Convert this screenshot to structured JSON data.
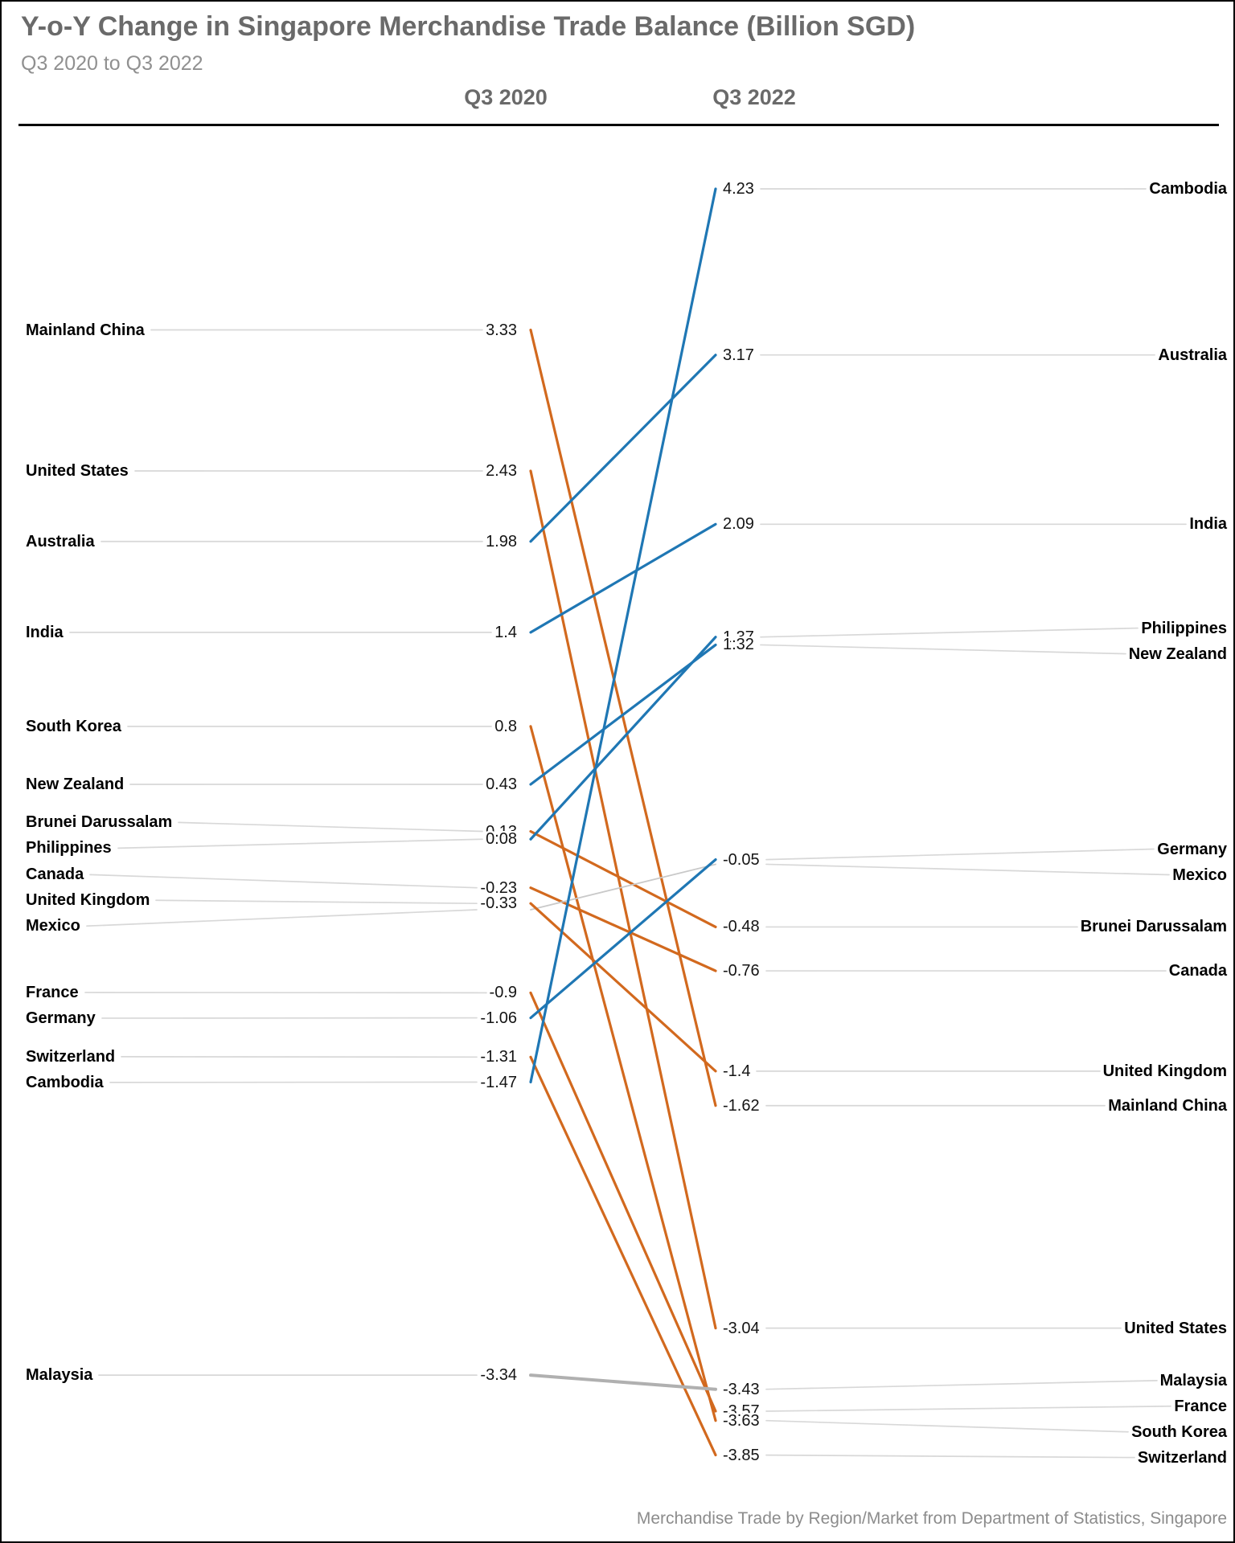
{
  "title": "Y-o-Y Change in Singapore Merchandise Trade Balance (Billion SGD)",
  "subtitle": "Q3 2020 to Q3 2022",
  "column_headers": {
    "left": "Q3 2020",
    "right": "Q3 2022"
  },
  "source": "Merchandise Trade by Region/Market from Department of Statistics, Singapore",
  "colors": {
    "up": "#1f77b4",
    "down": "#d2691e",
    "flat": "#c9c9c9",
    "flat_thick": "#b0b0b0",
    "connector": "#d8d8d8",
    "title_gray": "#6a6a6a",
    "subtitle_gray": "#909090",
    "label_black": "#000000"
  },
  "chart_data": {
    "type": "line",
    "subtype": "slopegraph",
    "unit": "Billion SGD",
    "periods": [
      "Q3 2020",
      "Q3 2022"
    ],
    "value_range": [
      -3.85,
      4.23
    ],
    "legend": "none",
    "series": [
      {
        "name": "Mainland China",
        "q3_2020": 3.33,
        "q3_2022": -1.62,
        "trend": "down"
      },
      {
        "name": "United States",
        "q3_2020": 2.43,
        "q3_2022": -3.04,
        "trend": "down"
      },
      {
        "name": "Australia",
        "q3_2020": 1.98,
        "q3_2022": 3.17,
        "trend": "up"
      },
      {
        "name": "India",
        "q3_2020": 1.4,
        "q3_2022": 2.09,
        "trend": "up"
      },
      {
        "name": "South Korea",
        "q3_2020": 0.8,
        "q3_2022": -3.63,
        "trend": "down"
      },
      {
        "name": "New Zealand",
        "q3_2020": 0.43,
        "q3_2022": 1.32,
        "trend": "up"
      },
      {
        "name": "Brunei Darussalam",
        "q3_2020": 0.13,
        "q3_2022": -0.48,
        "trend": "down"
      },
      {
        "name": "Philippines",
        "q3_2020": 0.08,
        "q3_2022": 1.37,
        "trend": "up"
      },
      {
        "name": "Canada",
        "q3_2020": -0.23,
        "q3_2022": -0.76,
        "trend": "down"
      },
      {
        "name": "Mexico",
        "q3_2020": -0.37,
        "q3_2022": -0.08,
        "trend": "flat",
        "values_hidden": true
      },
      {
        "name": "United Kingdom",
        "q3_2020": -0.33,
        "q3_2022": -1.4,
        "trend": "down"
      },
      {
        "name": "France",
        "q3_2020": -0.9,
        "q3_2022": -3.57,
        "trend": "down"
      },
      {
        "name": "Germany",
        "q3_2020": -1.06,
        "q3_2022": -0.05,
        "trend": "up"
      },
      {
        "name": "Switzerland",
        "q3_2020": -1.31,
        "q3_2022": -3.85,
        "trend": "down"
      },
      {
        "name": "Cambodia",
        "q3_2020": -1.47,
        "q3_2022": 4.23,
        "trend": "up"
      },
      {
        "name": "Malaysia",
        "q3_2020": -3.34,
        "q3_2022": -3.43,
        "trend": "flat",
        "thick": true
      }
    ]
  }
}
